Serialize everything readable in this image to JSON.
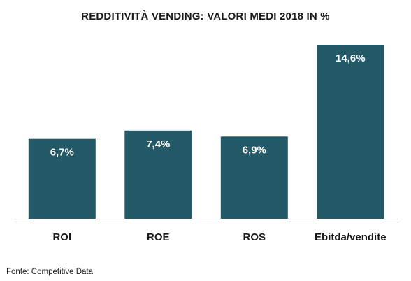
{
  "chart_data": {
    "type": "bar",
    "title": "REDDITIVITÀ VENDING: VALORI MEDI 2018 IN %",
    "categories": [
      "ROI",
      "ROE",
      "ROS",
      "Ebitda/vendite"
    ],
    "values": [
      6.7,
      7.4,
      6.9,
      14.6
    ],
    "data_labels": [
      "6,7%",
      "7,4%",
      "6,9%",
      "14,6%"
    ],
    "xlabel": "",
    "ylabel": "",
    "ylim": [
      0,
      14.6
    ],
    "grid": false,
    "legend": "none",
    "colors": {
      "bar": "#245968",
      "bar_label": "#ffffff",
      "axis_line": "#c8c8c8",
      "text": "#1a1a1a"
    }
  },
  "footer": {
    "source": "Fonte: Competitive  Data"
  }
}
